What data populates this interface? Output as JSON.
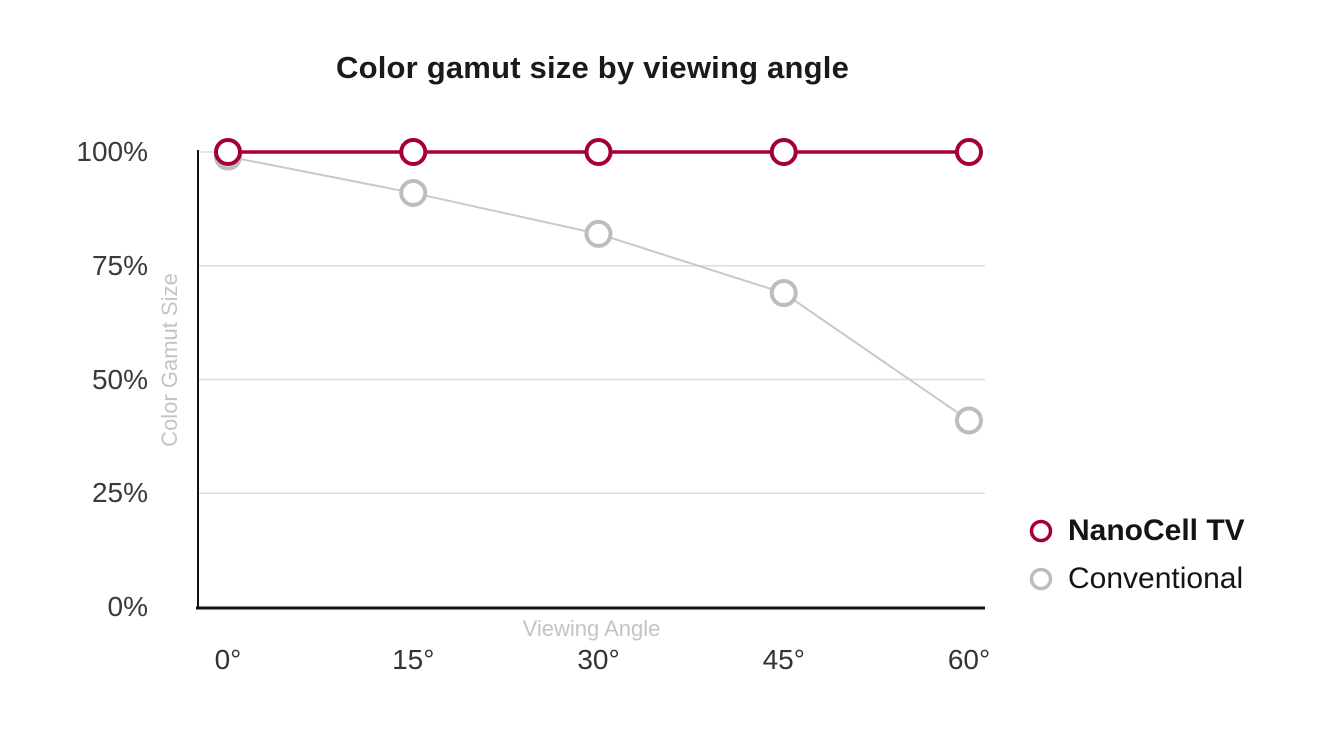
{
  "chart_data": {
    "type": "line",
    "title": "Color gamut size by viewing angle",
    "xlabel": "Viewing Angle",
    "ylabel": "Color Gamut Size",
    "categories": [
      "0°",
      "15°",
      "30°",
      "45°",
      "60°"
    ],
    "series": [
      {
        "name": "NanoCell TV",
        "values": [
          100,
          100,
          100,
          100,
          100
        ],
        "color": "#a50034",
        "line_color": "#a50034",
        "line_width": 3.5,
        "emphasis": true
      },
      {
        "name": "Conventional",
        "values": [
          99,
          91,
          82,
          69,
          41
        ],
        "color": "#bdbdbd",
        "line_color": "#c9c9c9",
        "line_width": 2,
        "emphasis": false
      }
    ],
    "y_ticks": [
      {
        "label": "0%",
        "value": 0
      },
      {
        "label": "25%",
        "value": 25
      },
      {
        "label": "50%",
        "value": 50
      },
      {
        "label": "75%",
        "value": 75
      },
      {
        "label": "100%",
        "value": 100
      }
    ],
    "ylim": [
      0,
      100
    ],
    "grid": true,
    "legend_position": "right",
    "colors": {
      "gridline": "#dddddd",
      "axis": "#111111",
      "tick_text": "#3a3a3a",
      "axis_title_text": "#c4c4c4",
      "marker_fill": "#ffffff"
    }
  }
}
